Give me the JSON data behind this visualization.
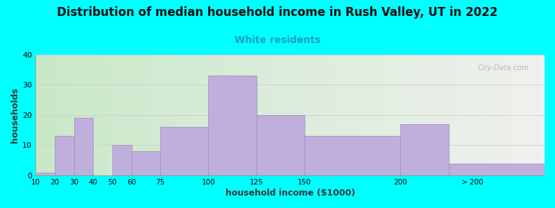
{
  "title": "Distribution of median household income in Rush Valley, UT in 2022",
  "subtitle": "White residents",
  "xlabel": "household income ($1000)",
  "ylabel": "households",
  "background_color": "#00FFFF",
  "bar_color": "#C0AEDD",
  "bar_edge_color": "#9988BB",
  "title_fontsize": 12,
  "subtitle_fontsize": 10,
  "subtitle_color": "#2299CC",
  "ylabel_fontsize": 9,
  "xlabel_fontsize": 9,
  "ylim": [
    0,
    40
  ],
  "yticks": [
    0,
    10,
    20,
    30,
    40
  ],
  "watermark": "City-Data.com",
  "bar_lefts": [
    10,
    20,
    30,
    40,
    50,
    60,
    75,
    100,
    125,
    150,
    200,
    225
  ],
  "bar_rights": [
    20,
    30,
    40,
    50,
    60,
    75,
    100,
    125,
    150,
    200,
    225,
    275
  ],
  "values": [
    1,
    13,
    19,
    0,
    10,
    8,
    16,
    33,
    20,
    13,
    17,
    4
  ],
  "xtick_pos": [
    10,
    20,
    30,
    40,
    50,
    60,
    75,
    100,
    125,
    150,
    200,
    237.5
  ],
  "xtick_labels": [
    "10",
    "20",
    "30",
    "40",
    "50",
    "60",
    "75",
    "100",
    "125",
    "150",
    "200",
    "> 200"
  ],
  "xlim": [
    10,
    275
  ]
}
